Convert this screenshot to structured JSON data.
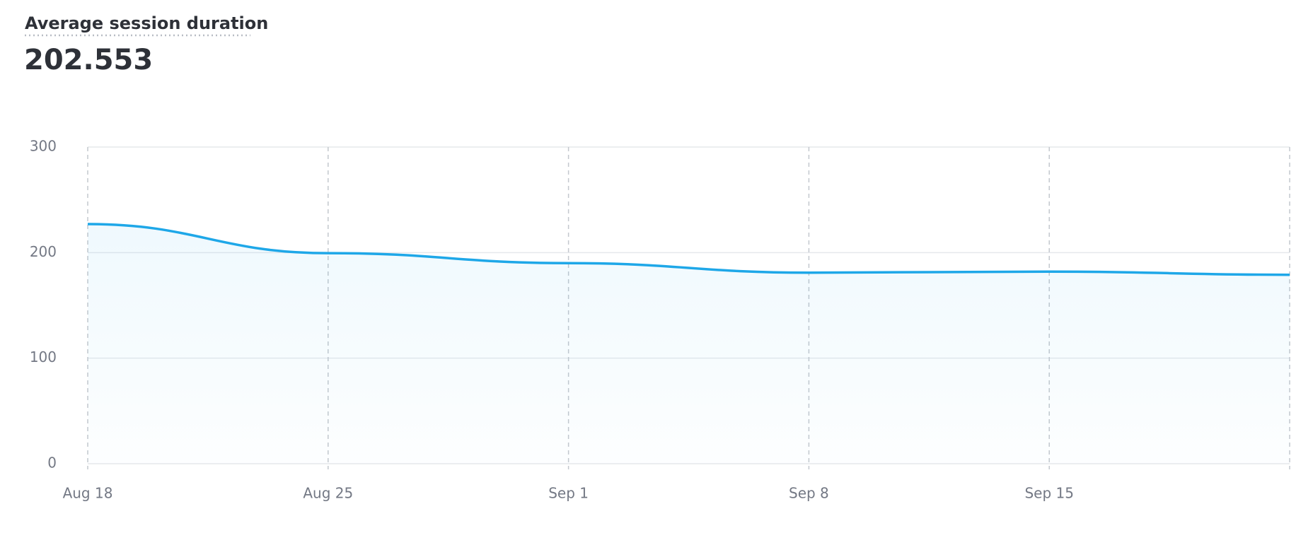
{
  "header": {
    "title": "Average session duration",
    "value": 202.553
  },
  "chart_data": {
    "type": "line",
    "categories": [
      "Aug 18",
      "Aug 25",
      "Sep 1",
      "Sep 8",
      "Sep 15",
      null
    ],
    "series": [
      {
        "color": "#1ea7e8",
        "values": [
          227,
          199.5,
          190,
          181,
          182,
          179
        ]
      }
    ],
    "ylim": [
      0,
      300
    ],
    "yticks": [
      0,
      100,
      200,
      300
    ],
    "grid": true
  }
}
